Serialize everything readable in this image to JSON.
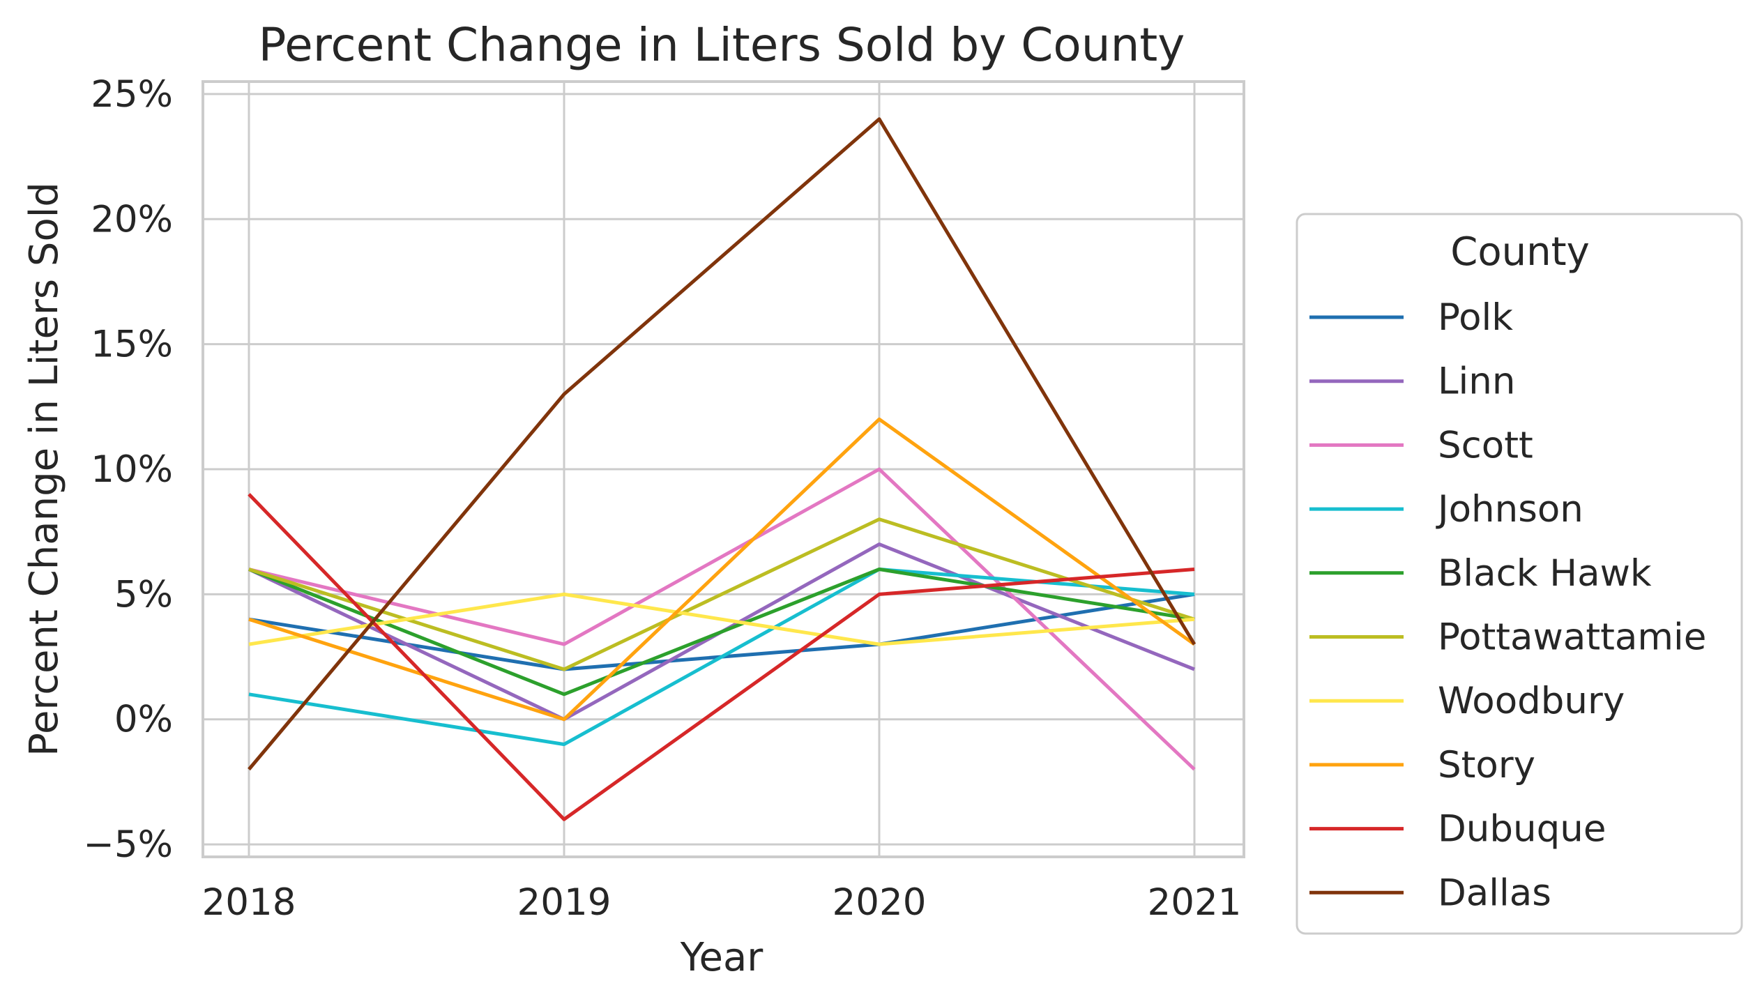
{
  "chart_data": {
    "type": "line",
    "title": "Percent Change in Liters Sold by County",
    "xlabel": "Year",
    "ylabel": "Percent Change in Liters Sold",
    "x": [
      "2018",
      "2019",
      "2020",
      "2021"
    ],
    "ylim": [
      -5.5,
      25.5
    ],
    "yticks": [
      -5,
      0,
      5,
      10,
      15,
      20,
      25
    ],
    "ytick_labels": [
      "−5%",
      "0%",
      "5%",
      "10%",
      "15%",
      "20%",
      "25%"
    ],
    "grid": true,
    "legend_title": "County",
    "legend_position": "outside-right",
    "series": [
      {
        "name": "Polk",
        "color": "#1f6fb0",
        "values": [
          4,
          2,
          3,
          5
        ]
      },
      {
        "name": "Linn",
        "color": "#9467bd",
        "values": [
          6,
          0,
          7,
          2
        ]
      },
      {
        "name": "Scott",
        "color": "#e377c2",
        "values": [
          6,
          3,
          10,
          -2
        ]
      },
      {
        "name": "Johnson",
        "color": "#17becf",
        "values": [
          1,
          -1,
          6,
          5
        ]
      },
      {
        "name": "Black Hawk",
        "color": "#2ca02c",
        "values": [
          6,
          1,
          6,
          4
        ]
      },
      {
        "name": "Pottawattamie",
        "color": "#bcbd22",
        "values": [
          6,
          2,
          8,
          4
        ]
      },
      {
        "name": "Woodbury",
        "color": "#ffe74c",
        "values": [
          3,
          5,
          3,
          4
        ]
      },
      {
        "name": "Story",
        "color": "#ffa30f",
        "values": [
          4,
          0,
          12,
          3
        ]
      },
      {
        "name": "Dubuque",
        "color": "#d62728",
        "values": [
          9,
          -4,
          5,
          6
        ]
      },
      {
        "name": "Dallas",
        "color": "#80340b",
        "values": [
          -2,
          13,
          24,
          3
        ]
      }
    ]
  }
}
